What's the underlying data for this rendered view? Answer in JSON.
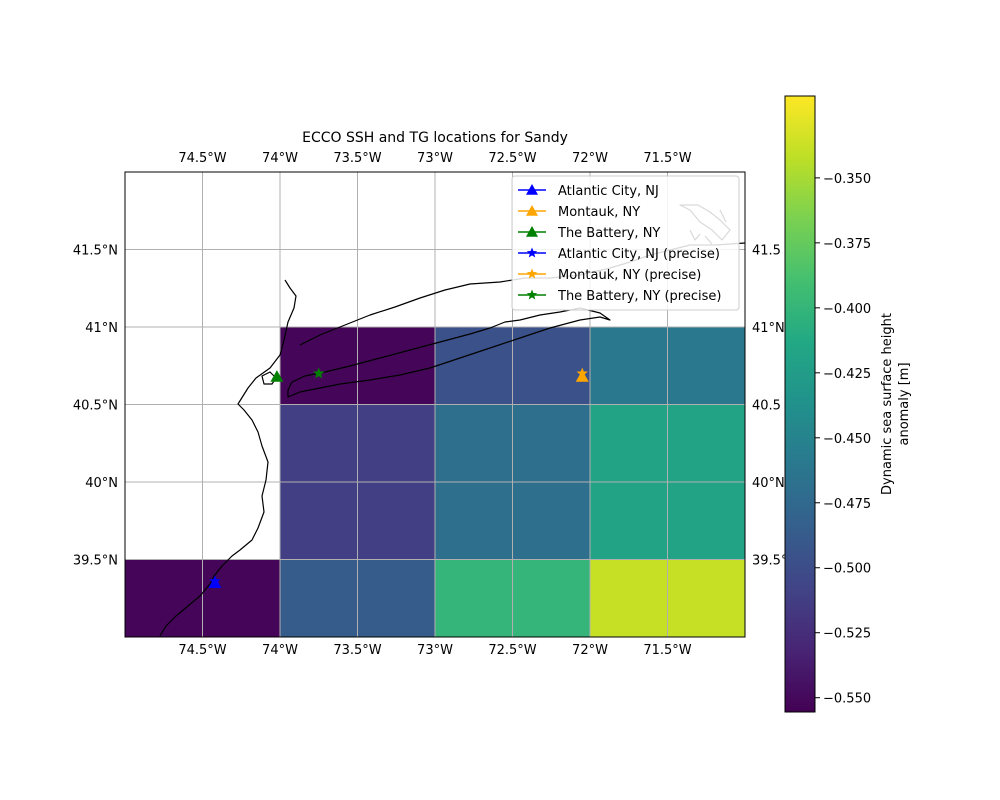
{
  "chart_data": {
    "type": "heatmap",
    "title": "ECCO SSH and TG locations for Sandy",
    "projection": "PlateCarree",
    "extent": {
      "lon": [
        -75.0,
        -71.0
      ],
      "lat": [
        39.0,
        42.0
      ]
    },
    "grid": true,
    "x_ticks": [
      -74.5,
      -74.0,
      -73.5,
      -73.0,
      -72.5,
      -72.0,
      -71.5
    ],
    "x_tick_labels": [
      "74.5°W",
      "74°W",
      "73.5°W",
      "73°W",
      "72.5°W",
      "72°W",
      "71.5°W"
    ],
    "y_ticks": [
      39.5,
      40.0,
      40.5,
      41.0,
      41.5
    ],
    "y_tick_labels_left": [
      "39.5°N",
      "40°N",
      "40.5°N",
      "41°N",
      "41.5°N"
    ],
    "y_tick_labels_right": [
      "39.5°",
      "40°N",
      "40.5",
      "41°N",
      "41.5"
    ],
    "cells": [
      {
        "lon": [
          -75.0,
          -74.0
        ],
        "lat": [
          39.0,
          39.5
        ],
        "value": -0.552
      },
      {
        "lon": [
          -74.0,
          -73.0
        ],
        "lat": [
          39.0,
          39.5
        ],
        "value": -0.487
      },
      {
        "lon": [
          -73.0,
          -72.0
        ],
        "lat": [
          39.0,
          39.5
        ],
        "value": -0.4
      },
      {
        "lon": [
          -72.0,
          -71.0
        ],
        "lat": [
          39.0,
          39.5
        ],
        "value": -0.339
      },
      {
        "lon": [
          -74.0,
          -73.0
        ],
        "lat": [
          39.5,
          40.5
        ],
        "value": -0.512
      },
      {
        "lon": [
          -73.0,
          -72.0
        ],
        "lat": [
          39.5,
          40.5
        ],
        "value": -0.469
      },
      {
        "lon": [
          -72.0,
          -71.0
        ],
        "lat": [
          39.5,
          40.5
        ],
        "value": -0.418
      },
      {
        "lon": [
          -74.0,
          -73.0
        ],
        "lat": [
          40.5,
          41.0
        ],
        "value": -0.552
      },
      {
        "lon": [
          -73.0,
          -72.0
        ],
        "lat": [
          40.5,
          41.0
        ],
        "value": -0.497
      },
      {
        "lon": [
          -72.0,
          -71.0
        ],
        "lat": [
          40.5,
          41.0
        ],
        "value": -0.461
      }
    ],
    "markers": [
      {
        "name": "Atlantic City, NJ",
        "lon": -74.42,
        "lat": 39.35,
        "symbol": "triangle",
        "color": "#0000ff"
      },
      {
        "name": "Montauk, NY",
        "lon": -72.05,
        "lat": 40.68,
        "symbol": "triangle",
        "color": "#ffa500"
      },
      {
        "name": "The Battery, NY",
        "lon": -74.02,
        "lat": 40.68,
        "symbol": "triangle",
        "color": "#008000"
      },
      {
        "name": "Atlantic City, NJ (precise)",
        "lon": -74.42,
        "lat": 39.36,
        "symbol": "star",
        "color": "#0000ff"
      },
      {
        "name": "Montauk, NY (precise)",
        "lon": -72.05,
        "lat": 40.7,
        "symbol": "star",
        "color": "#ffa500"
      },
      {
        "name": "The Battery, NY (precise)",
        "lon": -73.75,
        "lat": 40.7,
        "symbol": "star",
        "color": "#008000"
      }
    ],
    "legend": {
      "placement": "top-right"
    },
    "colorbar": {
      "label_lines": [
        "Dynamic sea surface height",
        "anomaly [m]"
      ],
      "colormap": "viridis",
      "vmin": -0.5555,
      "vmax": -0.3185,
      "ticks": [
        -0.35,
        -0.375,
        -0.4,
        -0.425,
        -0.45,
        -0.475,
        -0.5,
        -0.525,
        -0.55
      ],
      "tick_labels": [
        "−0.350",
        "−0.375",
        "−0.400",
        "−0.425",
        "−0.450",
        "−0.475",
        "−0.500",
        "−0.525",
        "−0.550"
      ]
    }
  }
}
